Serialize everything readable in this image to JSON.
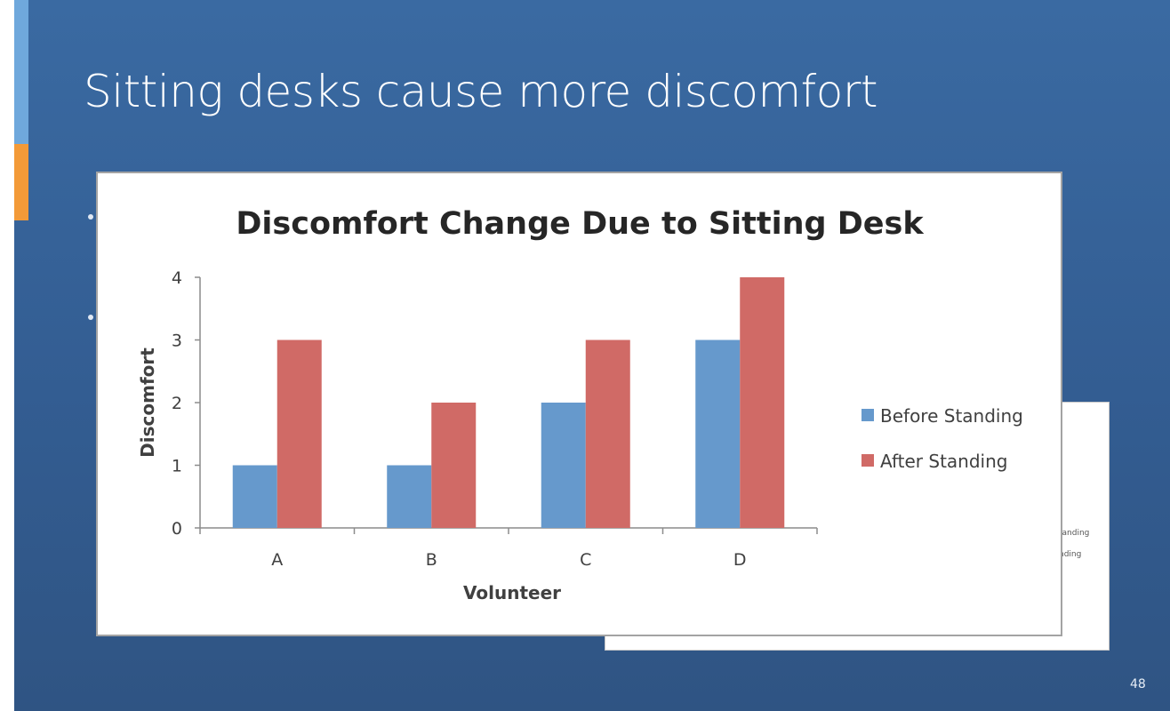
{
  "slide": {
    "title": "Sitting desks cause more discomfort",
    "page_number": "48"
  },
  "back_card": {
    "partial_label_1": "tanding",
    "partial_label_2": "nding"
  },
  "colors": {
    "slide_background": "#3a6aa2",
    "accent_blue": "#6fa8dc",
    "accent_orange": "#f39a38",
    "before_standing": "#6699cc",
    "after_standing": "#d06a66"
  },
  "chart_data": {
    "type": "bar",
    "title": "Discomfort Change Due to Sitting Desk",
    "xlabel": "Volunteer",
    "ylabel": "Discomfort",
    "categories": [
      "A",
      "B",
      "C",
      "D"
    ],
    "series": [
      {
        "name": "Before Standing",
        "values": [
          1,
          1,
          2,
          3
        ],
        "color": "#6699cc"
      },
      {
        "name": "After Standing",
        "values": [
          3,
          2,
          3,
          4
        ],
        "color": "#d06a66"
      }
    ],
    "ylim": [
      0,
      4
    ],
    "yticks": [
      0,
      1,
      2,
      3,
      4
    ],
    "grid": false,
    "legend_position": "right"
  }
}
